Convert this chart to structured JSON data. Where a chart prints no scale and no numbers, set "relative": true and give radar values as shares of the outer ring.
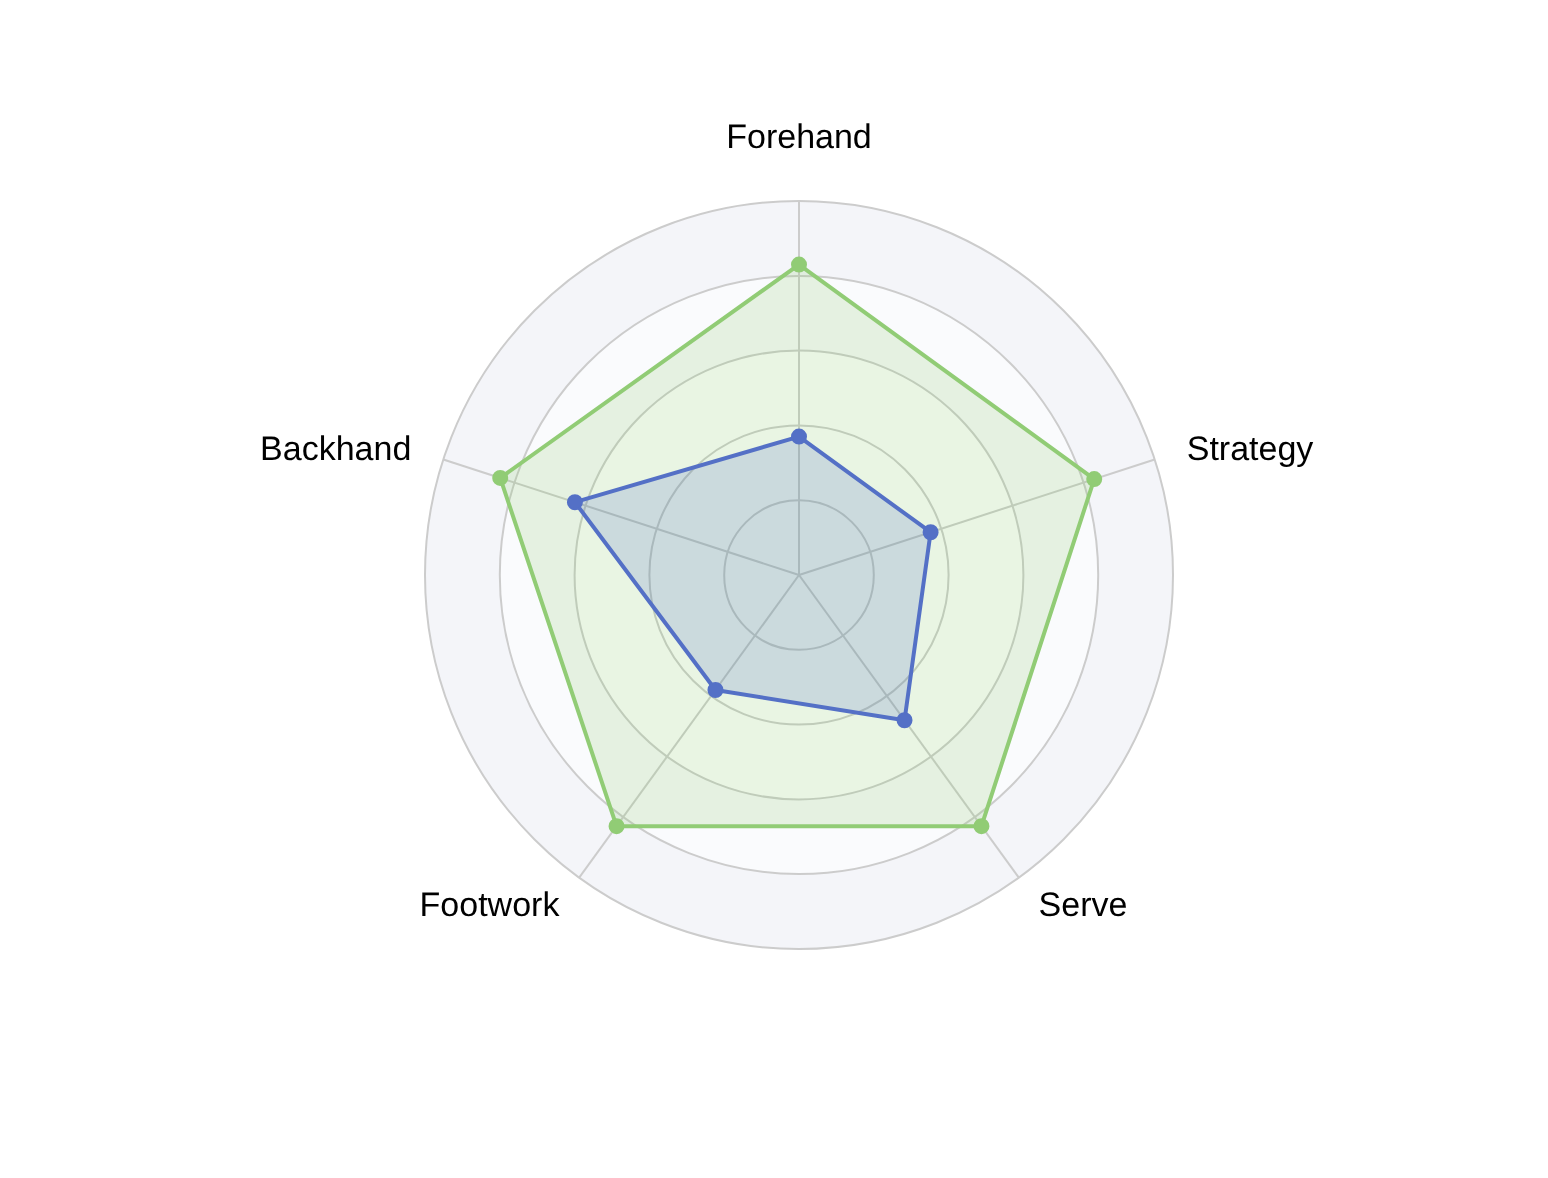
{
  "chart_data": {
    "type": "radar",
    "relative": true,
    "categories": [
      "Forehand",
      "Strategy",
      "Serve",
      "Footwork",
      "Backhand"
    ],
    "marker": "circle",
    "line_style": "solid",
    "series": [
      {
        "color": "#91cc75",
        "values": [
          0.83,
          0.83,
          0.83,
          0.83,
          0.84
        ]
      },
      {
        "color": "#5470c6",
        "values": [
          0.37,
          0.37,
          0.48,
          0.38,
          0.63
        ]
      }
    ]
  }
}
